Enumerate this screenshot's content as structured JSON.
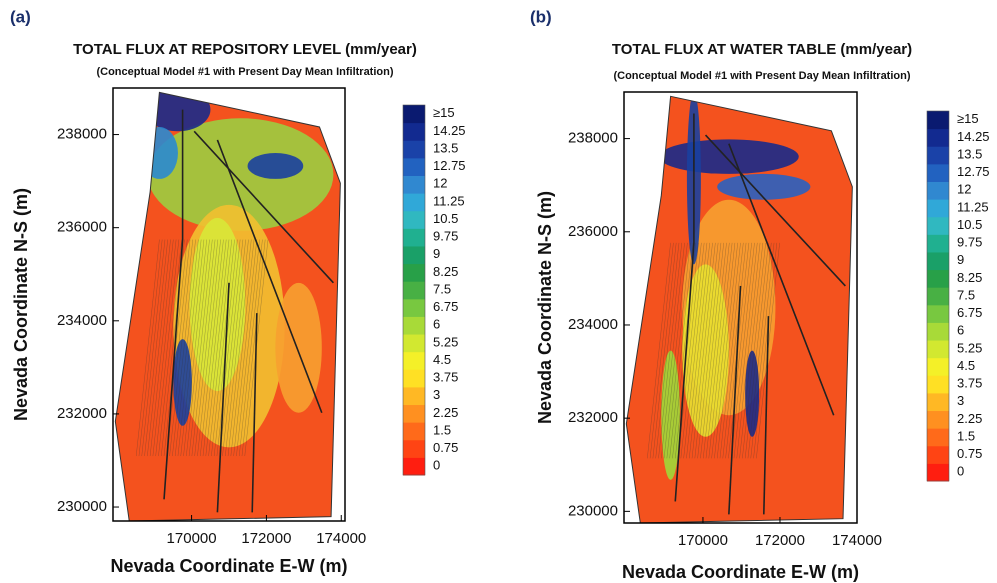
{
  "chart_data": [
    {
      "type": "heatmap",
      "panel_label": "(a)",
      "title": "TOTAL FLUX AT REPOSITORY LEVEL (mm/year)",
      "subtitle": "(Conceptual Model #1 with Present Day Mean Infiltration)",
      "xlabel": "Nevada Coordinate E-W (m)",
      "ylabel": "Nevada Coordinate N-S (m)",
      "xlim": [
        167900,
        174100
      ],
      "ylim": [
        229700,
        239000
      ],
      "xticks": [
        170000,
        172000,
        174000
      ],
      "yticks": [
        230000,
        232000,
        234000,
        236000,
        238000
      ],
      "colorbar_ticks": [
        0,
        0.75,
        1.5,
        2.25,
        3,
        3.75,
        4.5,
        5.25,
        6,
        6.75,
        7.5,
        8.25,
        9,
        9.75,
        10.5,
        11.25,
        12,
        12.75,
        13.5,
        14.25,
        {
          "value": 15,
          "label": "≥15"
        }
      ],
      "colorbar_colors": [
        "#ff1e10",
        "#ff4414",
        "#ff6a1a",
        "#ff9020",
        "#ffb824",
        "#ffe024",
        "#f4f028",
        "#d2e830",
        "#a8da38",
        "#78c840",
        "#48b044",
        "#28a048",
        "#1aa068",
        "#20b090",
        "#30b8c0",
        "#30a8d8",
        "#3088d0",
        "#2262c0",
        "#1a42a8",
        "#122a90",
        "#0a1a70"
      ]
    },
    {
      "type": "heatmap",
      "panel_label": "(b)",
      "title": "TOTAL FLUX AT WATER TABLE (mm/year)",
      "subtitle": "(Conceptual Model #1 with Present Day Mean Infiltration)",
      "xlabel": "Nevada Coordinate E-W (m)",
      "ylabel": "Nevada Coordinate N-S (m)",
      "xlim": [
        167950,
        174000
      ],
      "ylim": [
        229750,
        239000
      ],
      "xticks": [
        170000,
        172000,
        174000
      ],
      "yticks": [
        230000,
        232000,
        234000,
        236000,
        238000
      ],
      "colorbar_ticks": [
        0,
        0.75,
        1.5,
        2.25,
        3,
        3.75,
        4.5,
        5.25,
        6,
        6.75,
        7.5,
        8.25,
        9,
        9.75,
        10.5,
        11.25,
        12,
        12.75,
        13.5,
        14.25,
        {
          "value": 15,
          "label": "≥15"
        }
      ],
      "colorbar_colors": [
        "#ff1e10",
        "#ff4414",
        "#ff6a1a",
        "#ff9020",
        "#ffb824",
        "#ffe024",
        "#f4f028",
        "#d2e830",
        "#a8da38",
        "#78c840",
        "#48b044",
        "#28a048",
        "#1aa068",
        "#20b090",
        "#30b8c0",
        "#30a8d8",
        "#3088d0",
        "#2262c0",
        "#1a42a8",
        "#122a90",
        "#0a1a70"
      ]
    }
  ]
}
